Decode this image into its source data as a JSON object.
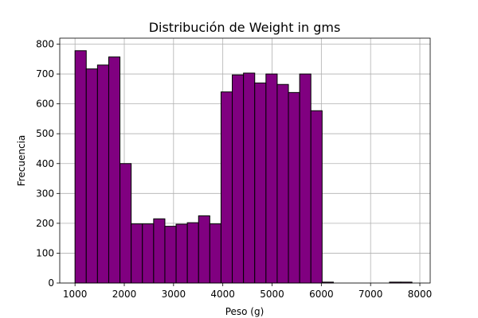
{
  "chart_data": {
    "type": "bar",
    "title": "Distribución de Weight in gms",
    "xlabel": "Peso (g)",
    "ylabel": "Frecuencia",
    "xlim": [
      690,
      8210
    ],
    "ylim": [
      0,
      820
    ],
    "xticks": [
      1000,
      2000,
      3000,
      4000,
      5000,
      6000,
      7000,
      8000
    ],
    "yticks": [
      0,
      100,
      200,
      300,
      400,
      500,
      600,
      700,
      800
    ],
    "grid": true,
    "bar_color": "#800080",
    "edge_color": "#000000",
    "bin_start": 1000,
    "bin_width": 228,
    "values": [
      778,
      717,
      730,
      757,
      400,
      198,
      198,
      215,
      190,
      197,
      202,
      225,
      198,
      640,
      697,
      703,
      670,
      700,
      665,
      638,
      700,
      577,
      3,
      0,
      0,
      0,
      0,
      0,
      3,
      3
    ]
  }
}
